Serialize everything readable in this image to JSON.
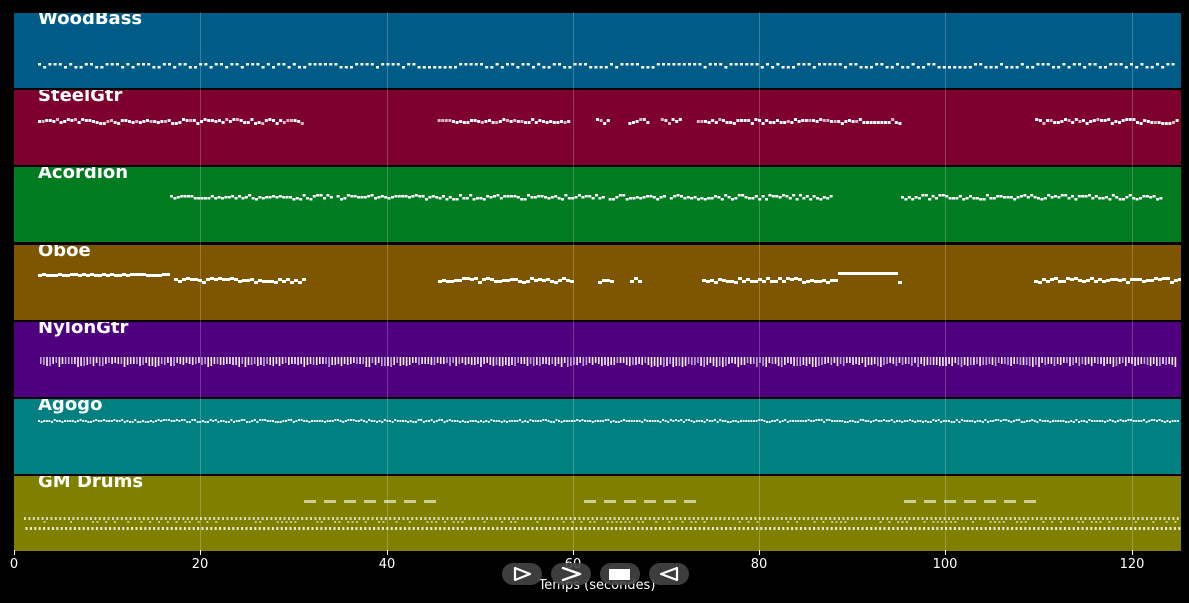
{
  "tracks": [
    {
      "name": "WoodBass",
      "color": "#005c87",
      "pattern": "bass"
    },
    {
      "name": "SteelGtr",
      "color": "#7e002d",
      "pattern": "steel"
    },
    {
      "name": "Acordion",
      "color": "#017c20",
      "pattern": "accordion"
    },
    {
      "name": "Oboe",
      "color": "#7e5500",
      "pattern": "oboe"
    },
    {
      "name": "NylonGtr",
      "color": "#4e007e",
      "pattern": "nylon"
    },
    {
      "name": "Agogo",
      "color": "#008080",
      "pattern": "agogo"
    },
    {
      "name": "GM Drums",
      "color": "#7f7f00",
      "pattern": "drums"
    }
  ],
  "axis": {
    "label": "Temps (secondes)",
    "ticks": [
      "0",
      "20",
      "40",
      "60",
      "80",
      "100",
      "120"
    ],
    "tick_values": [
      0,
      20,
      40,
      60,
      80,
      100,
      120
    ],
    "max_seconds": 125.3
  },
  "transport": {
    "buttons": [
      {
        "name": "play-outline-button",
        "icon": "play-outline-icon"
      },
      {
        "name": "fast-forward-button",
        "icon": "chevron-right-icon"
      },
      {
        "name": "stop-button",
        "icon": "stop-icon"
      },
      {
        "name": "rewind-button",
        "icon": "play-reverse-icon"
      }
    ]
  }
}
